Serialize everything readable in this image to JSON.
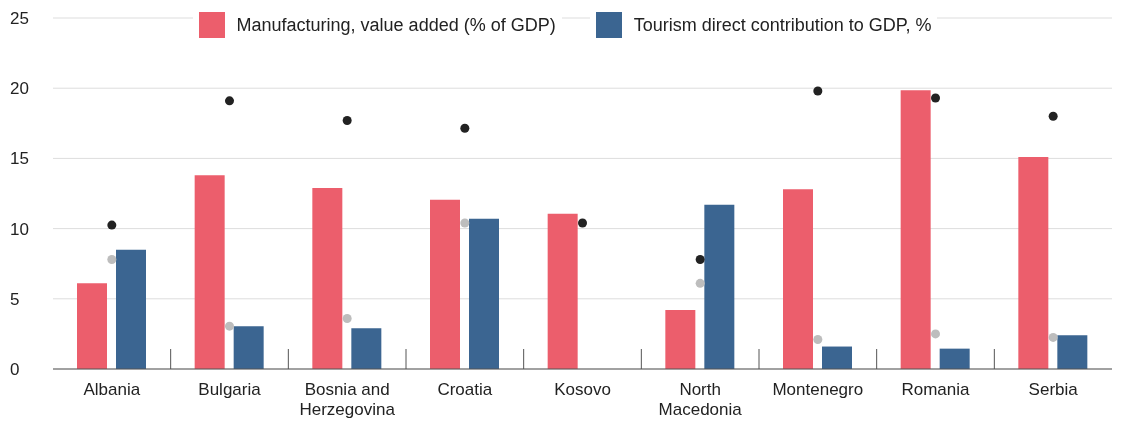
{
  "chart_data": {
    "type": "bar",
    "categories": [
      "Albania",
      "Bulgaria",
      "Bosnia and Herzegovina",
      "Croatia",
      "Kosovo",
      "North Macedonia",
      "Montenegro",
      "Romania",
      "Serbia"
    ],
    "series": [
      {
        "name": "Manufacturing, value added (% of GDP)",
        "color": "#ec5e6c",
        "values": [
          6.1,
          13.8,
          12.9,
          12.05,
          11.05,
          4.2,
          12.8,
          19.85,
          15.1
        ]
      },
      {
        "name": "Tourism direct contribution to GDP, %",
        "color": "#3b6591",
        "values": [
          8.5,
          3.05,
          2.9,
          10.7,
          null,
          11.7,
          1.6,
          1.45,
          2.4
        ]
      },
      {
        "type": "scatter",
        "color": "#222222",
        "values": [
          10.25,
          19.1,
          17.7,
          17.15,
          10.4,
          7.8,
          19.8,
          19.3,
          18.0
        ]
      },
      {
        "type": "scatter",
        "color": "#bdbdbd",
        "values": [
          7.8,
          3.05,
          3.6,
          10.4,
          null,
          6.1,
          2.1,
          2.5,
          2.25
        ]
      }
    ],
    "ylim": [
      0,
      25
    ],
    "yticks": [
      0,
      5,
      10,
      15,
      20,
      25
    ],
    "grid": "y",
    "legend": "top",
    "marker": "circle"
  }
}
